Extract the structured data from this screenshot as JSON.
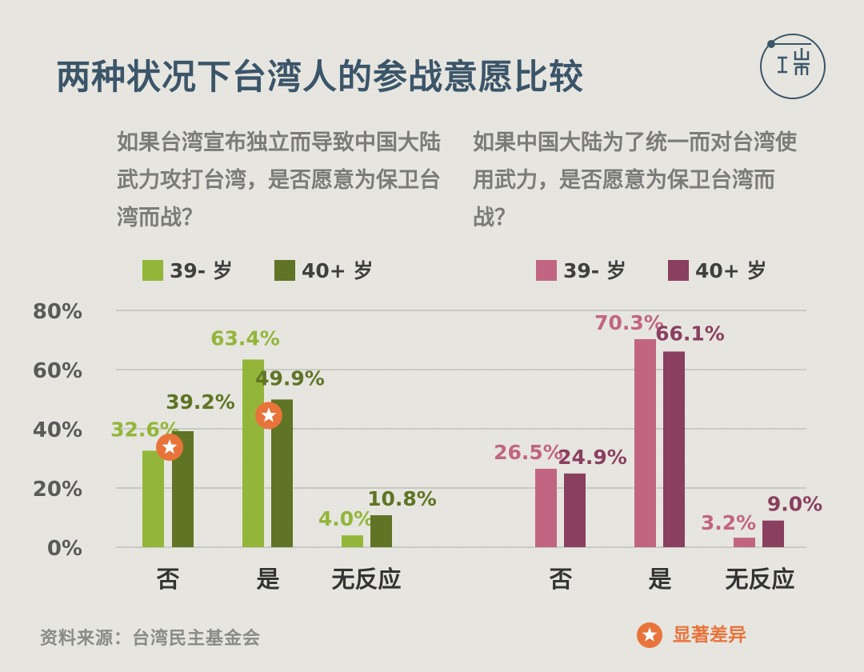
{
  "title": "两种状况下台湾人的参战意愿比较",
  "logo": {
    "text": "端",
    "icon": "initium-logo"
  },
  "source": "资料来源：台湾民主基金会",
  "significance_legend": {
    "label": "显著差异",
    "icon": "star-badge-icon",
    "color": "#e8743b"
  },
  "colors": {
    "title": "#3b5569",
    "grid": "#b9b9b3",
    "axis_text": "#5a5a5a",
    "category_text": "#333333",
    "star": "#e8743b"
  },
  "chart_data": [
    {
      "type": "bar",
      "title": "如果台湾宣布独立而导致中国大陆武力攻打台湾，是否愿意为保卫台湾而战？",
      "categories": [
        "否",
        "是",
        "无反应"
      ],
      "series": [
        {
          "name": "39- 岁",
          "values": [
            32.6,
            63.4,
            4.0
          ],
          "labels": [
            "32.6%",
            "63.4%",
            "4.0%"
          ],
          "color": "#93b63a",
          "label_color": "#93b63a"
        },
        {
          "name": "40+ 岁",
          "values": [
            39.2,
            49.9,
            10.8
          ],
          "labels": [
            "39.2%",
            "49.9%",
            "10.8%"
          ],
          "color": "#5f7424",
          "label_color": "#5f7424"
        }
      ],
      "significant": [
        true,
        true,
        false
      ],
      "ylim": [
        0,
        80
      ],
      "yticks": [
        "0%",
        "20%",
        "40%",
        "60%",
        "80%"
      ],
      "ylabel": "",
      "xlabel": "",
      "grid": true,
      "legend_position": "top"
    },
    {
      "type": "bar",
      "title": "如果中国大陆为了统一而对台湾使用武力，是否愿意为保卫台湾而战？",
      "categories": [
        "否",
        "是",
        "无反应"
      ],
      "series": [
        {
          "name": "39- 岁",
          "values": [
            26.5,
            70.3,
            3.2
          ],
          "labels": [
            "26.5%",
            "70.3%",
            "3.2%"
          ],
          "color": "#c16583",
          "label_color": "#c16583"
        },
        {
          "name": "40+ 岁",
          "values": [
            24.9,
            66.1,
            9.0
          ],
          "labels": [
            "24.9%",
            "66.1%",
            "9.0%"
          ],
          "color": "#8a3f5f",
          "label_color": "#8a3f5f"
        }
      ],
      "significant": [
        false,
        false,
        false
      ],
      "ylim": [
        0,
        80
      ],
      "yticks": [],
      "ylabel": "",
      "xlabel": "",
      "grid": true,
      "legend_position": "top"
    }
  ]
}
